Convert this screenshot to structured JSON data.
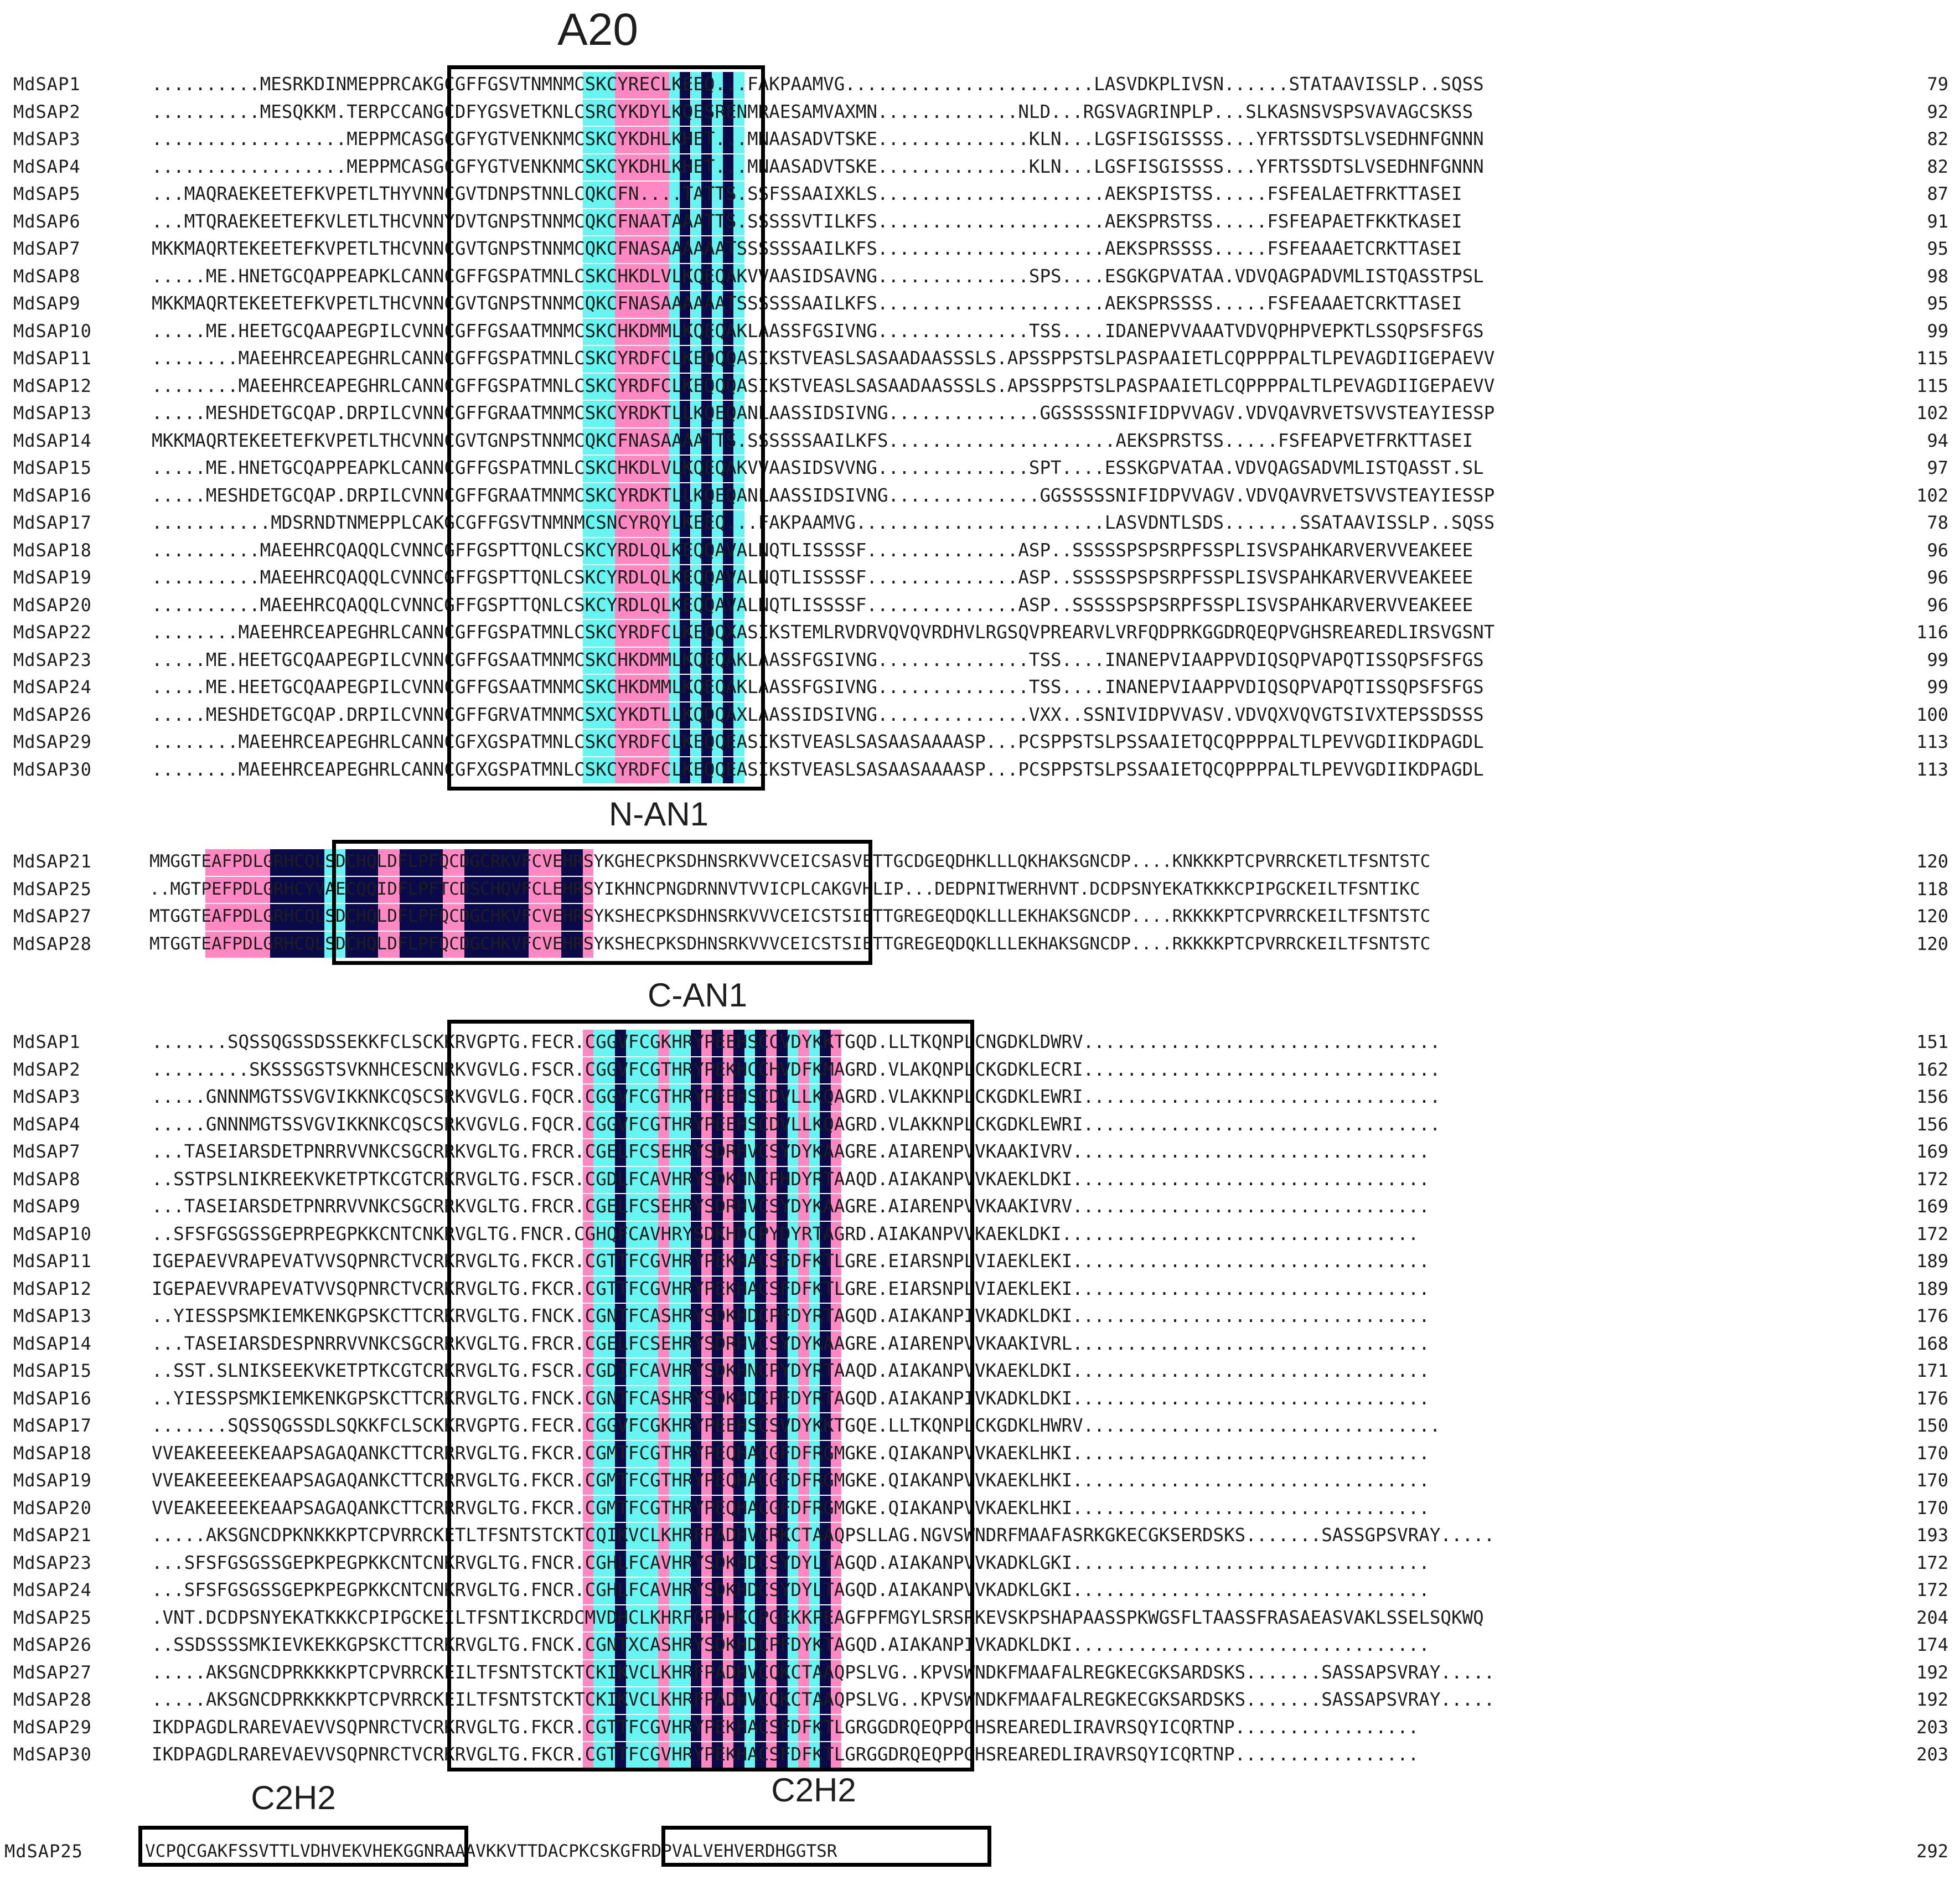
{
  "colors": {
    "pink": "#ff88c3",
    "cyan": "#66f5f0",
    "navy": "#0a0a4a"
  },
  "domains": {
    "a20": "A20",
    "n_an1": "N-AN1",
    "c_an1": "C-AN1",
    "c2h2_a": "C2H2",
    "c2h2_b": "C2H2"
  },
  "blocks": [
    {
      "id": "a20",
      "rows": [
        [
          "MdSAP1",
          "..........MESRKDINMEPPRCAKGCGFFGSVTNMNMCSKCYRECLKEEQ...FAKPAAMVG.......................LASVDKPLIVSN......STATAAVISSLP..SQSS",
          "79"
        ],
        [
          "MdSAP2",
          "..........MESQKKM.TERPCCANGCDFYGSVETKNLCSRCYKDYLKQESRENMRAESAMVAXMN.............NLD...RGSVAGRINPLP...SLKASNSVSPSVAVAGCSKSS",
          "92"
        ],
        [
          "MdSAP3",
          "..................MEPPMCASGCGFYGTVENKNMCSKCYKDHLKHET...MNAASADVTSKE..............KLN...LGSFISGISSSS...YFRTSSDTSLVSEDHNFGNNN",
          "82"
        ],
        [
          "MdSAP4",
          "..................MEPPMCASGCGFYGTVENKNMCSKCYKDHLKHET...MNAASADVTSKE..............KLN...LGSFISGISSSS...YFRTSSDTSLVSEDHNFGNNN",
          "82"
        ],
        [
          "MdSAP5",
          "...MAQRAEKEETEFKVPETLTHYVNNCGVTDNPSTNNLCQKCFN....TATTS.SSFSSAAIXKLS.....................AEKSPISTSS.....FSFEALAETFRKTTASEI",
          "87"
        ],
        [
          "MdSAP6",
          "...MTQRAEKEETEFKVLETLTHCVNNYDVTGNPSTNNMCQKCFNAATAAATTS.SSSSSVTILKFS.....................AEKSPRSTSS.....FSFEAPAETFKKTKASEI",
          "91"
        ],
        [
          "MdSAP7",
          "MKKMAQRTEKEETEFKVPETLTHCVNNCGVTGNPSTNNMCQKCFNASAAAAAATSSSSSSAAILKFS.....................AEKSPRSSSS.....FSFEAAAETCRKTTASEI",
          "95"
        ],
        [
          "MdSAP8",
          ".....ME.HNETGCQAPPEAPKLCANNCGFFGSPATMNLCSKCHKDLVLKQEQAKVVAASIDSAVNG..............SPS....ESGKGPVATAA.VDVQAGPADVMLISTQASSTPSL",
          "98"
        ],
        [
          "MdSAP9",
          "MKKMAQRTEKEETEFKVPETLTHCVNNCGVTGNPSTNNMCQKCFNASAAAAAATSSSSSSAAILKFS.....................AEKSPRSSSS.....FSFEAAAETCRKTTASEI",
          "95"
        ],
        [
          "MdSAP10",
          ".....ME.HEETGCQAAPEGPILCVNNCGFFGSAATMNMCSKCHKDMMLKQEQAKLAASSFGSIVNG..............TSS....IDANEPVVAAATVDVQPHPVEPKTLSSQPSFSFGS",
          "99"
        ],
        [
          "MdSAP11",
          "........MAEEHRCEAPEGHRLCANNCGFFGSPATMNLCSKCYRDFCLKEQQQASIKSTVEASLSASAADAASSSLS.APSSPPSTSLPASPAAIETLCQPPPPALTLPEVAGDIIGEPAEVV",
          "115"
        ],
        [
          "MdSAP12",
          "........MAEEHRCEAPEGHRLCANNCGFFGSPATMNLCSKCYRDFCLKEQQQASIKSTVEASLSASAADAASSSLS.APSSPPSTSLPASPAAIETLCQPPPPALTLPEVAGDIIGEPAEVV",
          "115"
        ],
        [
          "MdSAP13",
          ".....MESHDETGCQAP.DRPILCVNNCGFFGRAATMNMCSKCYRDKTLLKQEQANLAASSIDSIVNG..............GGSSSSSNIFIDPVVAGV.VDVQAVRVETSVVSTEAYIESSP",
          "102"
        ],
        [
          "MdSAP14",
          "MKKMAQRTEKEETEFKVPETLTHCVNNCGVTGNPSTNNMCQKCFNASAAAATTS.SSSSSSAAILKFS.....................AEKSPRSTSS.....FSFEAPVETFRKTTASEI",
          "94"
        ],
        [
          "MdSAP15",
          ".....ME.HNETGCQAPPEAPKLCANNCGFFGSPATMNLCSKCHKDLVLKQEQAKVVAASIDSVVNG..............SPT....ESSKGPVATAA.VDVQAGSADVMLISTQASST.SL",
          "97"
        ],
        [
          "MdSAP16",
          ".....MESHDETGCQAP.DRPILCVNNCGFFGRAATMNMCSKCYRDKTLLKQEQANLAASSIDSIVNG..............GGSSSSSNIFIDPVVAGV.VDVQAVRVETSVVSTEAYIESSP",
          "102"
        ],
        [
          "MdSAP17",
          "...........MDSRNDTNMEPPLCAKGCGFFGSVTNMNMCSNCYRQYLKEEQ...FAKPAAMVG.......................LASVDNTLSDS.......SSATAAVISSLP..SQSS",
          "78"
        ],
        [
          "MdSAP18",
          "..........MAEEHRCQAQQLCVNNCGFFGSPTTQNLCSKCYRDLQLKEQQAVALNQTLISSSSF..............ASP..SSSSSPSPSRPFSSPLISVSPAHKARVERVVEAKEEE",
          "96"
        ],
        [
          "MdSAP19",
          "..........MAEEHRCQAQQLCVNNCGFFGSPTTQNLCSKCYRDLQLKEQQAVALNQTLISSSSF..............ASP..SSSSSPSPSRPFSSPLISVSPAHKARVERVVEAKEEE",
          "96"
        ],
        [
          "MdSAP20",
          "..........MAEEHRCQAQQLCVNNCGFFGSPTTQNLCSKCYRDLQLKEQQAVALNQTLISSSSF..............ASP..SSSSSPSPSRPFSSPLISVSPAHKARVERVVEAKEEE",
          "96"
        ],
        [
          "MdSAP22",
          "........MAEEHRCEAPEGHRLCANNCGFFGSPATMNLCSKCYRDFCLKEQQXASIKSTEMLRVDRVQVQVRDHVLRGSQVPREARVLVRFQDPRKGGDRQEQPVGHSREAREDLIRSVGSNT",
          "116"
        ],
        [
          "MdSAP23",
          ".....ME.HEETGCQAAPEGPILCVNNCGFFGSAATMNMCSKCHKDMMLKQEQAKLAASSFGSIVNG..............TSS....INANEPVIAAPPVDIQSQPVAPQTISSQPSFSFGS",
          "99"
        ],
        [
          "MdSAP24",
          ".....ME.HEETGCQAAPEGPILCVNNCGFFGSAATMNMCSKCHKDMMLKQEQAKLAASSFGSIVNG..............TSS....INANEPVIAAPPVDIQSQPVAPQTISSQPSFSFGS",
          "99"
        ],
        [
          "MdSAP26",
          ".....MESHDETGCQAP.DRPILCVNNCGFFGRVATMNMCSXCYKDTLLKQDQAXLAASSIDSIVNG..............VXX..SSNIVIDPVVASV.VDVQXVQVGTSIVXTEPSSDSSS",
          "100"
        ],
        [
          "MdSAP29",
          "........MAEEHRCEAPEGHRLCANNCGFXGSPATMNLCSKCYRDFCLKEQQEASIKSTVEASLSASAASAAAASP...PCSPPSTSLPSSAAIETQCQPPPPALTLPEVVGDIIKDPAGDL",
          "113"
        ],
        [
          "MdSAP30",
          "........MAEEHRCEAPEGHRLCANNCGFXGSPATMNLCSKCYRDFCLKEQQEASIKSTVEASLSASAASAAAASP...PCSPPSTSLPSSAAIETQCQPPPPALTLPEVVGDIIKDPAGDL",
          "113"
        ]
      ]
    },
    {
      "id": "nan1",
      "rows": [
        [
          "MdSAP21",
          "MMGGTEAFPDLGRHCQLSDCHQLDFLPFQCDGCRKVFCVEHRSYKGHECPKSDHNSRKVVVCEICSASVETTGCDGEQDHKLLLQKHAKSGNCDP....KNKKKPTCPVRRCKETLTFSNTSTC",
          "120"
        ],
        [
          "MdSAP25",
          "..MGTPEFPDLGRHCYVAECQQIDFLPFTCDSCHQVFCLEHRSYIKHNCPNGDRNNVTVVICPLCAKGVHLIP...DEDPNITWERHVNT.DCDPSNYEKATKKKCPIPGCKEILTFSNTIKC",
          "118"
        ],
        [
          "MdSAP27",
          "MTGGTEAFPDLGRHCQLSDCHQLDFLPFQCDGCHKVFCVEHRSYKSHECPKSDHNSRKVVVCEICSTSIETTGREGEQDQKLLLEKHAKSGNCDP....RKKKKPTCPVRRCKEILTFSNTSTC",
          "120"
        ],
        [
          "MdSAP28",
          "MTGGTEAFPDLGRHCQLSDCHQLDFLPFQCDGCHKVFCVEHRSYKSHECPKSDHNSRKVVVCEICSTSIETTGREGEQDQKLLLEKHAKSGNCDP....RKKKKPTCPVRRCKEILTFSNTSTC",
          "120"
        ]
      ]
    },
    {
      "id": "can1",
      "rows": [
        [
          "MdSAP1",
          ".......SQSSQGSSDSSEKKFCLSCKKRVGPTG.FECR.CGGVFCGKHRYPEEHSCCVDYKKTGQD.LLTKQNPLCNGDKLDWRV.................................",
          "151"
        ],
        [
          "MdSAP2",
          ".........SKSSSGSTSVKNHCESCNRKVGVLG.FSCR.CGGVFCGTHRYPEKHCCHVDFKMAGRD.VLAKQNPLCKGDKLECRI.................................",
          "162"
        ],
        [
          "MdSAP3",
          ".....GNNNMGTSSVGVIKKNKCQSCSRKVGVLG.FQCR.CGGVFCGTHRYPEEHSCDVLLKQAGRD.VLAKKNPLCKGDKLEWRI.................................",
          "156"
        ],
        [
          "MdSAP4",
          ".....GNNNMGTSSVGVIKKNKCQSCSRKVGVLG.FQCR.CGGVFCGTHRYPEEHSCDVLLKQAGRD.VLAKKNPLCKGDKLEWRI.................................",
          "156"
        ],
        [
          "MdSAP7",
          "...TASEIARSDETPNRRVVNKCSGCRRKVGLTG.FRCR.CGELFCSEHRYSDRHVCSYDYKAAGRE.AIARENPVVKAAKIVRV.................................",
          "169"
        ],
        [
          "MdSAP8",
          "..SSTPSLNIKREEKVKETPTKCGTCRKRVGLTG.FSCR.CGDLFCAVHRYSDKHNCPHDYRTAAQD.AIAKANPVVKAEKLDKI.................................",
          "172"
        ],
        [
          "MdSAP9",
          "...TASEIARSDETPNRRVVNKCSGCRRKVGLTG.FRCR.CGELFCSEHRYSDRHVCSYDYKAAGRE.AIARENPVVKAAKIVRV.................................",
          "169"
        ],
        [
          "MdSAP10",
          "..SFSFGSGSSGEPRPEGPKKCNTCNKRVGLTG.FNCR.CGHQFCAVHRYSDKHDCPYDYRTAGRD.AIAKANPVVKAEKLDKI.................................",
          "172"
        ],
        [
          "MdSAP11",
          "IGEPAEVVRAPEVATVVSQPNRCTVCRKRVGLTG.FKCR.CGTTFCGVHRYPEKHACSFDFKTLGRE.EIARSNPLVIAEKLEKI.................................",
          "189"
        ],
        [
          "MdSAP12",
          "IGEPAEVVRAPEVATVVSQPNRCTVCRKRVGLTG.FKCR.CGTTFCGVHRYPEKHACSFDFKTLGRE.EIARSNPLVIAEKLEKI.................................",
          "189"
        ],
        [
          "MdSAP13",
          "..YIESSPSMKIEMKENKGPSKCTTCRKRVGLTG.FNCK.CGNTFCASHRYSDKHDCPFDYRTAGQD.AIAKANPIVKADKLDKI.................................",
          "176"
        ],
        [
          "MdSAP14",
          "...TASEIARSDESPNRRVVNKCSGCRRKVGLTG.FRCR.CGELFCSEHRYSDRHVCSYDYKAAGRE.AIARENPVVKAAKIVRL.................................",
          "168"
        ],
        [
          "MdSAP15",
          "..SST.SLNIKSEEKVKETPTKCGTCRKRVGLTG.FSCR.CGDIFCAVHRYSDKHNCPYDYRTAAQD.AIAKANPVVKAEKLDKI.................................",
          "171"
        ],
        [
          "MdSAP16",
          "..YIESSPSMKIEMKENKGPSKCTTCRKRVGLTG.FNCK.CGNTFCASHRYSDKHDCPFDYRTAGQD.AIAKANPIVKADKLDKI.................................",
          "176"
        ],
        [
          "MdSAP17",
          ".......SQSSQGSSDLSQKKFCLSCKKRVGPTG.FECR.CGGVFCGKHRYPEEHSCSVDYKKTGQE.LLTKQNPLCKGDKLHWRV.................................",
          "150"
        ],
        [
          "MdSAP18",
          "VVEAKEEEEKEAAPSAGAQANKCTTCRRRVGLTG.FKCR.CGMTFCGTHRYPEQHACGFDFRGMGKE.QIAKANPVVKAEKLHKI.................................",
          "170"
        ],
        [
          "MdSAP19",
          "VVEAKEEEEKEAAPSAGAQANKCTTCRRRVGLTG.FKCR.CGMTFCGTHRYPEQHACGFDFRGMGKE.QIAKANPVVKAEKLHKI.................................",
          "170"
        ],
        [
          "MdSAP20",
          "VVEAKEEEEKEAAPSAGAQANKCTTCRRRVGLTG.FKCR.CGMTFCGTHRYPEQHACGFDFRGMGKE.QIAKANPVVKAEKLHKI.................................",
          "170"
        ],
        [
          "MdSAP21",
          ".....AKSGNCDPKNKKKPTCPVRRCKETLTFSNTSTCKTCQIKVCLKHRFPADHVCRKCTAAQPSLLAG.NGVSWNDRFMAAFASRKGKECGKSERDSKS.......SASSGPSVRAY.....",
          "193"
        ],
        [
          "MdSAP23",
          "...SFSFGSGSSGEPKPEGPKKCNTCNKRVGLTG.FNCR.CGHLFCAVHRYSDKHDCSYDYLTAGQD.AIAKANPVVKADKLGKI.................................",
          "172"
        ],
        [
          "MdSAP24",
          "...SFSFGSGSSGEPKPEGPKKCNTCNKRVGLTG.FNCR.CGHLFCAVHRYSDKHDCSYDYLTAGQD.AIAKANPVVKADKLGKI.................................",
          "172"
        ],
        [
          "MdSAP25",
          ".VNT.DCDPSNYEKATKKKCPIPGCKEILTFSNTIKCRDCMVDHCLKHRFGPDHKCPGEKKPEAGFPFMGYLSRSRKEVSKPSHAPAASSPKWGSFLTAASSFRASAEASVAKLSSELSQKWQ",
          "204"
        ],
        [
          "MdSAP26",
          "..SSDSSSSMKIEVKEKKGPSKCTTCRKRVGLTG.FNCK.CGNTXCASHRYSDKHDCPFDYKTAGQD.AIAKANPIVKADKLDKI.................................",
          "174"
        ],
        [
          "MdSAP27",
          ".....AKSGNCDPRKKKKPTCPVRRCKEILTFSNTSTCKTCKIKVCLKHRFPADHVCQKCTAAQPSLVG..KPVSWNDKFMAAFALREGKECGKSARDSKS.......SASSAPSVRAY.....",
          "192"
        ],
        [
          "MdSAP28",
          ".....AKSGNCDPRKKKKPTCPVRRCKEILTFSNTSTCKTCKIKVCLKHRFPADHVCQKCTAAQPSLVG..KPVSWNDKFMAAFALREGKECGKSARDSKS.......SASSAPSVRAY.....",
          "192"
        ],
        [
          "MdSAP29",
          "IKDPAGDLRAREVAEVVSQPNRCTVCRKRVGLTG.FKCR.CGTTFCGVHRYPEKHACSFDFKTLGRGGDRQEQPPGHSREAREDLIRAVRSQYICQRTNP.................",
          "203"
        ],
        [
          "MdSAP30",
          "IKDPAGDLRAREVAEVVSQPNRCTVCRKRVGLTG.FKCR.CGTTFCGVHRYPEKHACSFDFKTLGRGGDRQEQPPGHSREAREDLIRAVRSQYICQRTNP.................",
          "203"
        ]
      ]
    },
    {
      "id": "c2h2",
      "rows": [
        [
          "MdSAP25",
          "VCPQCGAKFSSVTTLVDHVEKVHEKGGNRAAAVKKVTTDACPKCSKGFRDPVALVEHVERDHGGTSR",
          "292"
        ]
      ]
    }
  ]
}
